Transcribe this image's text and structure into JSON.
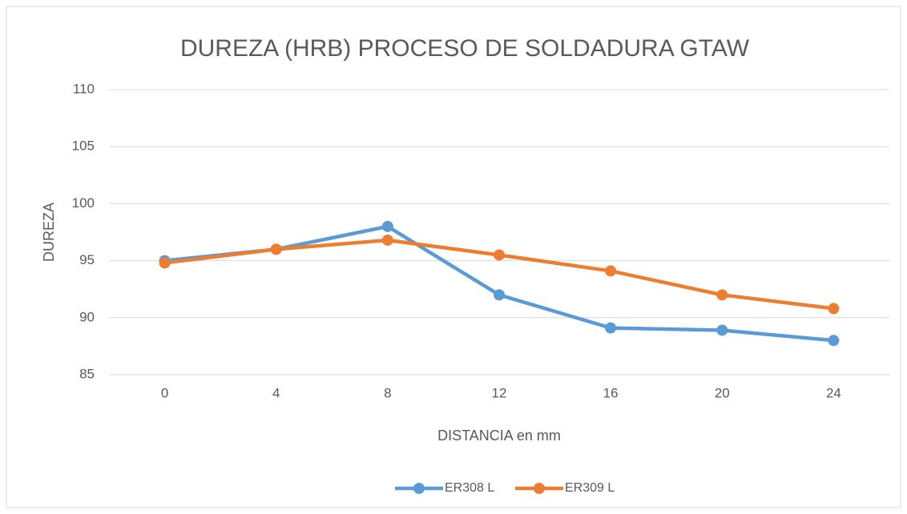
{
  "chart_data": {
    "type": "line",
    "title": "DUREZA (HRB) PROCESO DE SOLDADURA GTAW",
    "x_label": "DISTANCIA en mm",
    "y_label": "DUREZA",
    "categories": [
      "0",
      "4",
      "8",
      "12",
      "16",
      "20",
      "24"
    ],
    "series": [
      {
        "name": "ER308 L",
        "color": "#5b9bd5",
        "values": [
          95,
          96,
          98,
          92,
          89.1,
          88.9,
          88
        ]
      },
      {
        "name": "ER309 L",
        "color": "#ed7d31",
        "values": [
          94.8,
          96,
          96.8,
          95.5,
          94.1,
          92,
          90.8
        ]
      }
    ],
    "ylim": [
      85,
      110
    ],
    "yticks": [
      85,
      90,
      95,
      100,
      105,
      110
    ],
    "grid": true,
    "legend": "bottom"
  }
}
